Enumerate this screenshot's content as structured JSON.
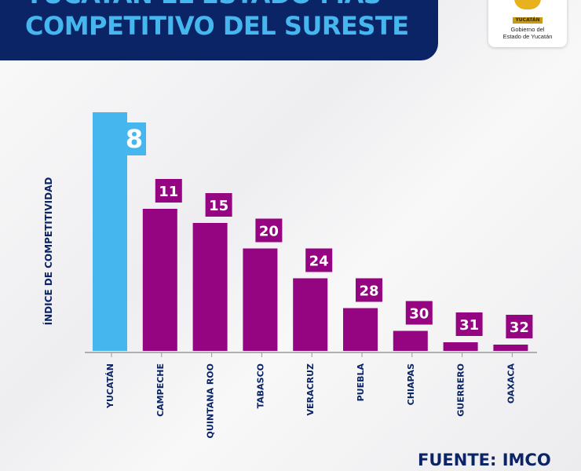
{
  "header": {
    "title_line1": "YUCATÁN EL ESTADO MÁS",
    "title_line2": "COMPETITIVO DEL SURESTE"
  },
  "logo": {
    "seal_text": "YUCATÁN",
    "line1": "Gobierno del",
    "line2": "Estado de Yucatán"
  },
  "source": "FUENTE: IMCO",
  "chart_data": {
    "type": "bar",
    "ylabel": "ÍNDICE DE COMPETITIVIDAD",
    "xlabel": "",
    "categories": [
      "YUCATÁN",
      "CAMPECHE",
      "QUINTANA ROO",
      "TABASCO",
      "VERACRUZ",
      "PUEBLA",
      "CHIAPAS",
      "GUERRERO",
      "OAXACA"
    ],
    "values": [
      8,
      11,
      15,
      20,
      24,
      28,
      30,
      31,
      32
    ],
    "highlight_color": "#45b6ee",
    "bar_color": "#950582",
    "grid": false
  }
}
